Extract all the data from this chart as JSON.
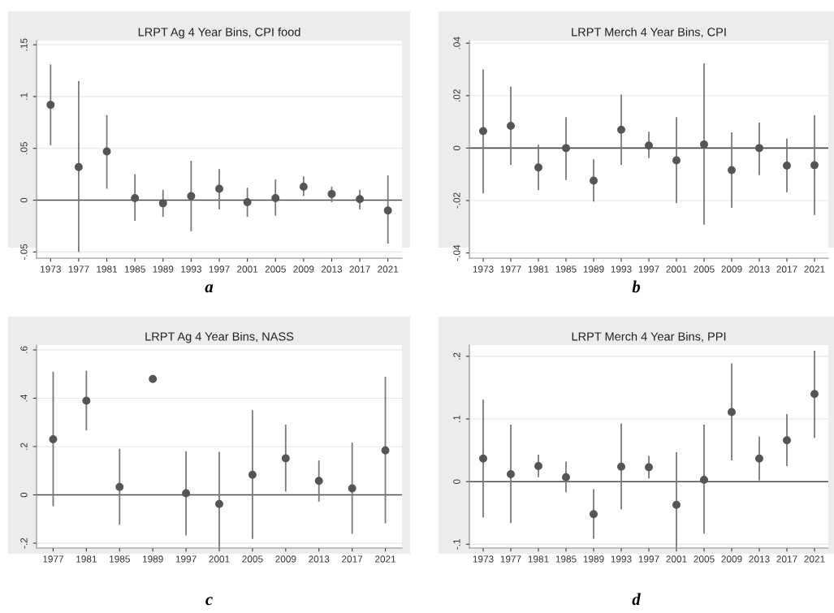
{
  "chart_data": [
    {
      "type": "scatter",
      "title": "LRPT Ag 4 Year Bins, CPI food",
      "categories": [
        "1973",
        "1977",
        "1981",
        "1985",
        "1989",
        "1993",
        "1997",
        "2001",
        "2005",
        "2009",
        "2013",
        "2017",
        "2021"
      ],
      "series": [
        {
          "color": "#555555",
          "values": [
            0.092,
            0.032,
            0.047,
            0.002,
            -0.003,
            0.004,
            0.011,
            -0.002,
            0.002,
            0.013,
            0.006,
            0.001,
            -0.01
          ],
          "errors": [
            [
              0.053,
              0.131
            ],
            [
              -0.05,
              0.115
            ],
            [
              0.011,
              0.082
            ],
            [
              -0.02,
              0.025
            ],
            [
              -0.016,
              0.01
            ],
            [
              -0.03,
              0.038
            ],
            [
              -0.009,
              0.03
            ],
            [
              -0.016,
              0.012
            ],
            [
              -0.015,
              0.02
            ],
            [
              0.004,
              0.023
            ],
            [
              -0.002,
              0.013
            ],
            [
              -0.009,
              0.01
            ],
            [
              -0.042,
              0.024
            ]
          ]
        }
      ],
      "ylim": [
        -0.056,
        0.154
      ],
      "yticks": [
        {
          "value": -0.05,
          "label": "-.05"
        },
        {
          "value": 0,
          "label": "0"
        },
        {
          "value": 0.05,
          "label": ".05"
        },
        {
          "value": 0.1,
          "label": ".1"
        },
        {
          "value": 0.15,
          "label": ".15"
        }
      ],
      "ref_lines": [
        {
          "axis": "y",
          "value": 0,
          "color": "#4d4d4d"
        }
      ],
      "grid": "y",
      "marker": "circle",
      "annotations": [
        "a"
      ]
    },
    {
      "type": "scatter",
      "title": "LRPT Merch 4 Year Bins, CPI",
      "categories": [
        "1973",
        "1977",
        "1981",
        "1985",
        "1989",
        "1993",
        "1997",
        "2001",
        "2005",
        "2009",
        "2013",
        "2017",
        "2021"
      ],
      "series": [
        {
          "color": "#555555",
          "values": [
            0.0065,
            0.0085,
            -0.0074,
            0.0,
            -0.0124,
            0.007,
            0.001,
            -0.0047,
            0.0014,
            -0.0084,
            0.0,
            -0.0067,
            -0.0065
          ],
          "errors": [
            [
              -0.0173,
              0.03
            ],
            [
              -0.0064,
              0.0234
            ],
            [
              -0.0161,
              0.0013
            ],
            [
              -0.0122,
              0.0118
            ],
            [
              -0.0204,
              -0.0043
            ],
            [
              -0.0064,
              0.0204
            ],
            [
              -0.0038,
              0.0062
            ],
            [
              -0.021,
              0.0118
            ],
            [
              -0.0292,
              0.0323
            ],
            [
              -0.0228,
              0.006
            ],
            [
              -0.0103,
              0.0097
            ],
            [
              -0.0168,
              0.0036
            ],
            [
              -0.0255,
              0.0126
            ]
          ]
        }
      ],
      "ylim": [
        -0.042,
        0.041
      ],
      "yticks": [
        {
          "value": -0.04,
          "label": "-.04"
        },
        {
          "value": -0.02,
          "label": "-.02"
        },
        {
          "value": 0,
          "label": "0"
        },
        {
          "value": 0.02,
          "label": ".02"
        },
        {
          "value": 0.04,
          "label": ".04"
        }
      ],
      "ref_lines": [
        {
          "axis": "y",
          "value": 0,
          "color": "#4d4d4d"
        }
      ],
      "grid": "y",
      "marker": "circle",
      "annotations": [
        "b"
      ]
    },
    {
      "type": "scatter",
      "title": "LRPT Ag 4 Year Bins, NASS",
      "categories": [
        "1977",
        "1981",
        "1985",
        "1989",
        "1997",
        "2001",
        "2005",
        "2009",
        "2013",
        "2017",
        "2021"
      ],
      "series": [
        {
          "color": "#555555",
          "values": [
            0.23,
            0.39,
            0.033,
            0.48,
            0.007,
            -0.038,
            0.083,
            0.151,
            0.058,
            0.027,
            0.184
          ],
          "errors": [
            [
              -0.047,
              0.51
            ],
            [
              0.267,
              0.514
            ],
            [
              -0.124,
              0.191
            ],
            null,
            [
              -0.168,
              0.181
            ],
            [
              -0.22,
              0.178
            ],
            [
              -0.182,
              0.35
            ],
            [
              0.014,
              0.291
            ],
            [
              -0.028,
              0.143
            ],
            [
              -0.161,
              0.216
            ],
            [
              -0.118,
              0.489
            ]
          ]
        }
      ],
      "ylim": [
        -0.22,
        0.62
      ],
      "yticks": [
        {
          "value": -0.2,
          "label": "-.2"
        },
        {
          "value": 0,
          "label": "0"
        },
        {
          "value": 0.2,
          "label": ".2"
        },
        {
          "value": 0.4,
          "label": ".4"
        },
        {
          "value": 0.6,
          "label": ".6"
        }
      ],
      "ref_lines": [
        {
          "axis": "y",
          "value": 0,
          "color": "#4d4d4d"
        }
      ],
      "grid": "y",
      "marker": "circle",
      "annotations": [
        "c"
      ]
    },
    {
      "type": "scatter",
      "title": "LRPT Merch 4 Year Bins, PPI",
      "categories": [
        "1973",
        "1977",
        "1981",
        "1985",
        "1989",
        "1993",
        "1997",
        "2001",
        "2005",
        "2009",
        "2013",
        "2017",
        "2021"
      ],
      "series": [
        {
          "color": "#555555",
          "values": [
            0.037,
            0.012,
            0.025,
            0.007,
            -0.052,
            0.024,
            0.023,
            -0.037,
            0.003,
            0.111,
            0.037,
            0.066,
            0.14
          ],
          "errors": [
            [
              -0.057,
              0.131
            ],
            [
              -0.066,
              0.091
            ],
            [
              0.007,
              0.043
            ],
            [
              -0.017,
              0.032
            ],
            [
              -0.091,
              -0.012
            ],
            [
              -0.044,
              0.093
            ],
            [
              0.005,
              0.041
            ],
            [
              -0.106,
              0.047
            ],
            [
              -0.083,
              0.091
            ],
            [
              0.034,
              0.189
            ],
            [
              0.002,
              0.072
            ],
            [
              0.025,
              0.108
            ],
            [
              0.07,
              0.209
            ]
          ]
        }
      ],
      "ylim": [
        -0.106,
        0.218
      ],
      "yticks": [
        {
          "value": -0.1,
          "label": "-.1"
        },
        {
          "value": 0,
          "label": "0"
        },
        {
          "value": 0.1,
          "label": ".1"
        },
        {
          "value": 0.2,
          "label": ".2"
        }
      ],
      "ref_lines": [
        {
          "axis": "y",
          "value": 0,
          "color": "#4d4d4d"
        }
      ],
      "grid": "y",
      "marker": "circle",
      "annotations": [
        "d"
      ]
    }
  ]
}
